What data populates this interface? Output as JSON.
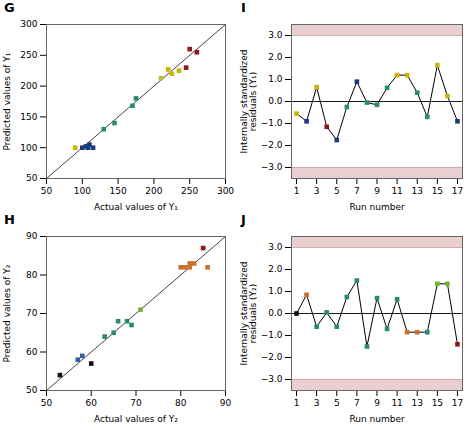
{
  "chart_data": [
    {
      "type": "scatter",
      "title": "G",
      "xlabel": "Actual values of Y₁",
      "ylabel": "Predicted values of Y₁",
      "xlim": [
        50,
        300
      ],
      "ylim": [
        50,
        300
      ],
      "xticks": [
        50,
        100,
        150,
        200,
        250,
        300
      ],
      "yticks": [
        50,
        100,
        150,
        200,
        250,
        300
      ],
      "series": [
        {
          "type": "line",
          "x": [
            50,
            300
          ],
          "values": [
            50,
            300
          ],
          "color": "#444444"
        },
        {
          "type": "scatter",
          "marker": "square",
          "x": [
            90,
            100,
            105,
            108,
            110,
            115,
            130,
            145,
            170,
            175,
            210,
            220,
            225,
            235,
            245,
            250,
            260
          ],
          "values": [
            100,
            100,
            102,
            100,
            105,
            100,
            130,
            140,
            168,
            180,
            213,
            227,
            220,
            225,
            230,
            260,
            255
          ],
          "colors": [
            "#c8b400",
            "#1a3a7c",
            "#1a3a7c",
            "#1a3a7c",
            "#1a3a7c",
            "#1a3a7c",
            "#2a8a70",
            "#2a8a70",
            "#2a8a70",
            "#2a8a70",
            "#b8c432",
            "#c8b400",
            "#c8b400",
            "#c8b400",
            "#8b1a1a",
            "#8b1a1a",
            "#8b1a1a"
          ]
        }
      ]
    },
    {
      "type": "line",
      "title": "I",
      "xlabel": "Run number",
      "ylabel": "Internally standardized\nresiduals (Y₁)",
      "xlim": [
        0.5,
        17.5
      ],
      "ylim": [
        -3.5,
        3.5
      ],
      "xticks": [
        1,
        3,
        5,
        7,
        9,
        11,
        13,
        15,
        17
      ],
      "yticks": [
        -3,
        -2,
        -1,
        0,
        1,
        2,
        3
      ],
      "bands": [
        {
          "from": 3.0,
          "to": 3.5,
          "color": "#d4a0a0"
        },
        {
          "from": -3.5,
          "to": -3.0,
          "color": "#d4a0a0"
        }
      ],
      "hlines": [
        {
          "value": 3.0,
          "color": "#d4a0a0"
        },
        {
          "value": -3.0,
          "color": "#d4a0a0"
        },
        {
          "value": 0.0,
          "color": "black"
        }
      ],
      "series": [
        {
          "type": "line",
          "color": "black",
          "x": [
            1,
            2,
            3,
            4,
            5,
            6,
            7,
            8,
            9,
            10,
            11,
            12,
            13,
            14,
            15,
            16,
            17
          ],
          "values": [
            -0.55,
            -0.9,
            0.65,
            -1.15,
            -1.75,
            -0.25,
            0.9,
            -0.05,
            -0.15,
            0.62,
            1.2,
            1.2,
            0.4,
            -0.7,
            1.65,
            0.25,
            -0.9
          ]
        },
        {
          "type": "scatter",
          "marker": "square",
          "x": [
            1,
            2,
            3,
            4,
            5,
            6,
            7,
            8,
            9,
            10,
            11,
            12,
            13,
            14,
            15,
            16,
            17
          ],
          "values": [
            -0.55,
            -0.9,
            0.65,
            -1.15,
            -1.75,
            -0.25,
            0.9,
            -0.05,
            -0.15,
            0.62,
            1.2,
            1.2,
            0.4,
            -0.7,
            1.65,
            0.25,
            -0.9
          ],
          "colors": [
            "#c8b400",
            "#1a3a7c",
            "#c8b400",
            "#8b1a1a",
            "#1a3a7c",
            "#2a8a70",
            "#1a3a7c",
            "#2a8a70",
            "#2a8a70",
            "#2a8a70",
            "#c8b400",
            "#c8b400",
            "#2a8a70",
            "#2a8a70",
            "#c8b400",
            "#c8b400",
            "#1a3a7c"
          ]
        }
      ]
    },
    {
      "type": "scatter",
      "title": "H",
      "xlabel": "Actual values of Y₂",
      "ylabel": "Predicted values of Y₂",
      "xlim": [
        50,
        90
      ],
      "ylim": [
        50,
        90
      ],
      "xticks": [
        50,
        60,
        70,
        80,
        90
      ],
      "yticks": [
        50,
        60,
        70,
        80,
        90
      ],
      "series": [
        {
          "type": "line",
          "x": [
            50,
            90
          ],
          "values": [
            50,
            90
          ],
          "color": "#444444"
        },
        {
          "type": "scatter",
          "marker": "square",
          "x": [
            53,
            57,
            58,
            60,
            63,
            65,
            66,
            68,
            69,
            71,
            80,
            81,
            82,
            82,
            83,
            85,
            86
          ],
          "values": [
            54,
            58,
            59,
            57,
            64,
            65,
            68,
            68,
            67,
            71,
            82,
            82,
            83,
            82,
            83,
            87,
            82
          ],
          "colors": [
            "#111111",
            "#3a5a9c",
            "#3a5a9c",
            "#111111",
            "#2a8a70",
            "#2a8a70",
            "#2a8a70",
            "#2a8a70",
            "#2a8a70",
            "#7ab030",
            "#c87030",
            "#c87030",
            "#c87030",
            "#c87030",
            "#c87030",
            "#8b1a1a",
            "#c87030"
          ]
        }
      ]
    },
    {
      "type": "line",
      "title": "J",
      "xlabel": "Run number",
      "ylabel": "Internally standardized\nresiduals (Y₂)",
      "xlim": [
        0.5,
        17.5
      ],
      "ylim": [
        -3.5,
        3.5
      ],
      "xticks": [
        1,
        3,
        5,
        7,
        9,
        11,
        13,
        15,
        17
      ],
      "yticks": [
        -3,
        -2,
        -1,
        0,
        1,
        2,
        3
      ],
      "bands": [
        {
          "from": 3.0,
          "to": 3.5,
          "color": "#d4a0a0"
        },
        {
          "from": -3.5,
          "to": -3.0,
          "color": "#d4a0a0"
        }
      ],
      "hlines": [
        {
          "value": 3.0,
          "color": "#d4a0a0"
        },
        {
          "value": -3.0,
          "color": "#d4a0a0"
        },
        {
          "value": 0.0,
          "color": "black"
        }
      ],
      "series": [
        {
          "type": "line",
          "color": "black",
          "x": [
            1,
            2,
            3,
            4,
            5,
            6,
            7,
            8,
            9,
            10,
            11,
            12,
            13,
            14,
            15,
            16,
            17
          ],
          "values": [
            0.0,
            0.85,
            -0.6,
            0.05,
            -0.6,
            0.75,
            1.5,
            -1.5,
            0.7,
            -0.7,
            0.65,
            -0.85,
            -0.85,
            -0.85,
            1.35,
            1.35,
            -1.4
          ]
        },
        {
          "type": "scatter",
          "marker": "square",
          "x": [
            1,
            2,
            3,
            4,
            5,
            6,
            7,
            8,
            9,
            10,
            11,
            12,
            13,
            14,
            15,
            16,
            17
          ],
          "values": [
            0.0,
            0.85,
            -0.6,
            0.05,
            -0.6,
            0.75,
            1.5,
            -1.5,
            0.7,
            -0.7,
            0.65,
            -0.85,
            -0.85,
            -0.85,
            1.35,
            1.35,
            -1.4
          ],
          "colors": [
            "#111111",
            "#c87030",
            "#2a8a70",
            "#2a8a70",
            "#2a8a70",
            "#2a8a70",
            "#2a8a70",
            "#2a8a70",
            "#2a8a70",
            "#2a8a70",
            "#2a8a70",
            "#c87030",
            "#c87030",
            "#2a8a70",
            "#7ab030",
            "#7ab030",
            "#8b1a1a"
          ]
        }
      ]
    }
  ]
}
